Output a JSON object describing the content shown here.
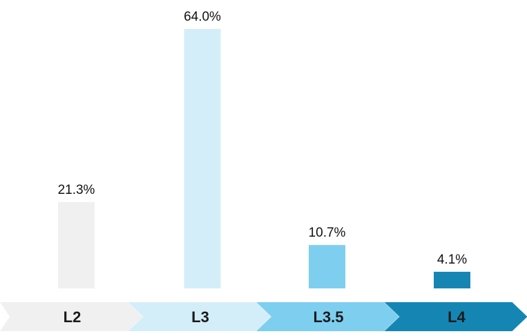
{
  "chart_data": {
    "type": "bar",
    "categories": [
      "L2",
      "L3",
      "L3.5",
      "L4"
    ],
    "values": [
      21.3,
      64.0,
      10.7,
      4.1
    ],
    "data_labels": [
      "21.3%",
      "64.0%",
      "10.7%",
      "4.1%"
    ],
    "colors": [
      "#f0f0f0",
      "#d4eef9",
      "#7ecef0",
      "#1586b4"
    ],
    "title": "",
    "xlabel": "",
    "ylabel": "",
    "ylim": [
      0,
      64
    ],
    "grid": false,
    "legend": "none"
  }
}
